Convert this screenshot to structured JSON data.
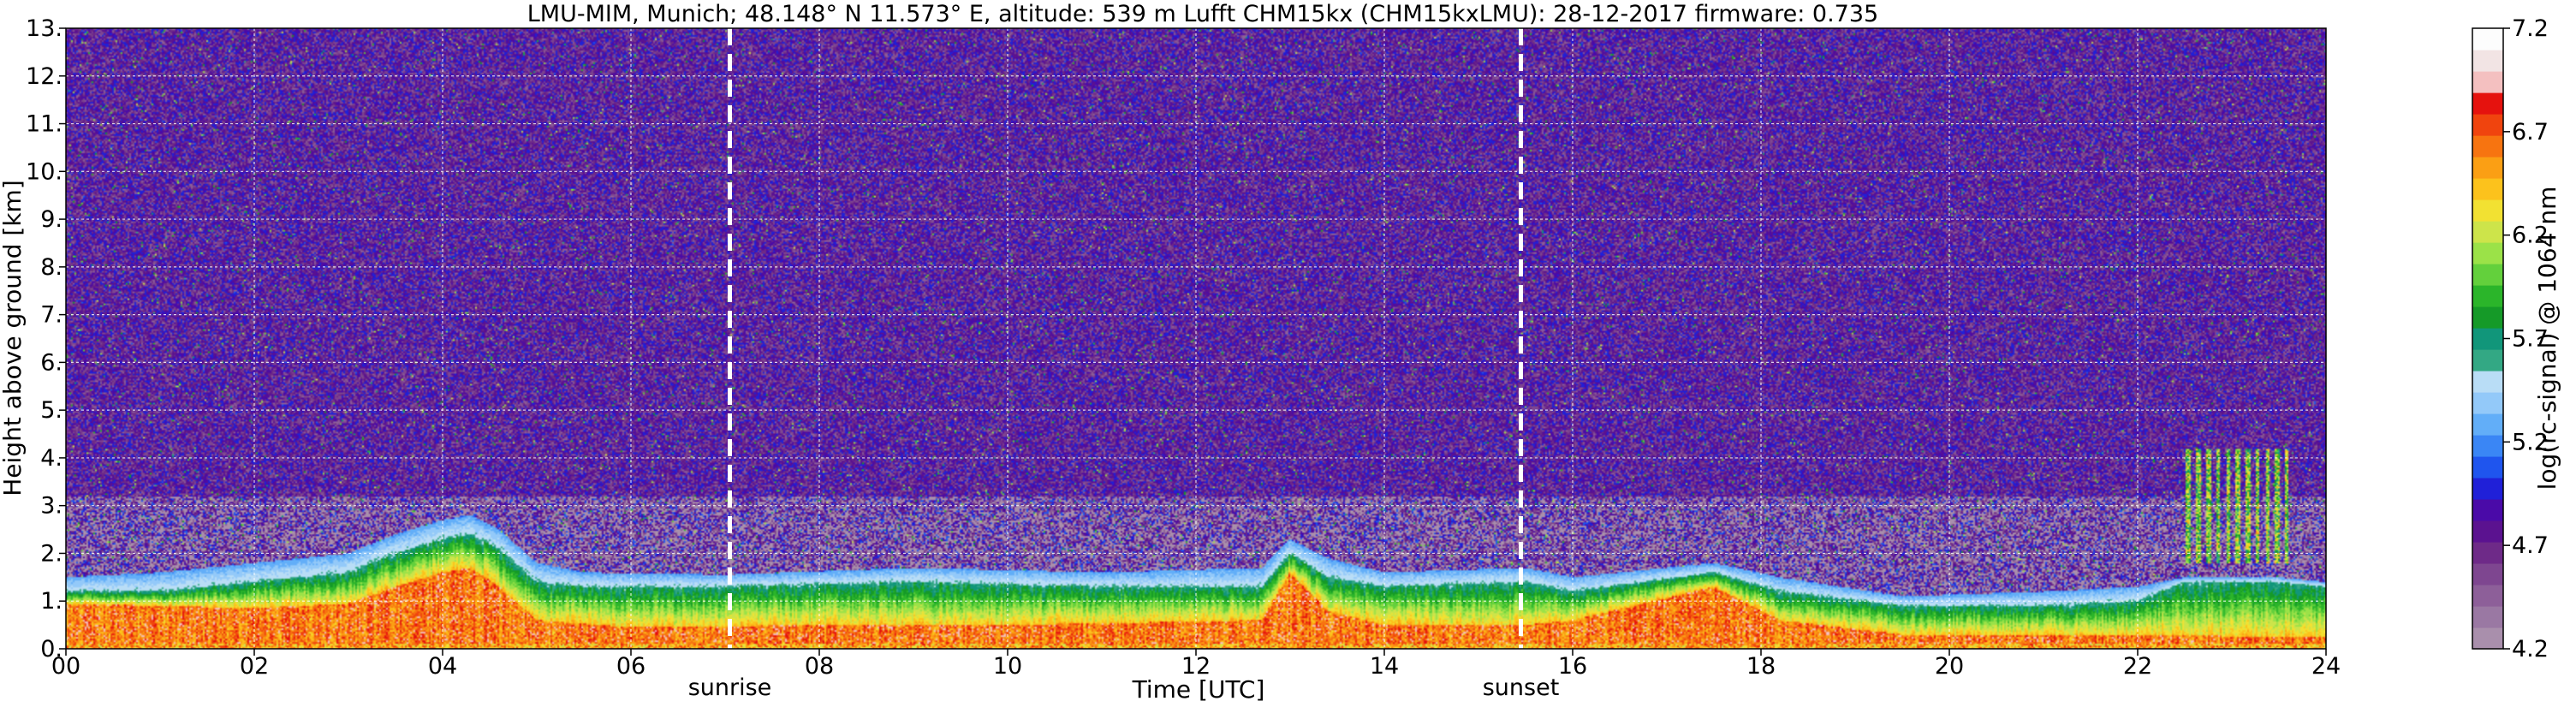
{
  "chart_data": {
    "type": "heatmap",
    "title": "LMU-MIM, Munich; 48.148° N 11.573° E, altitude: 539 m    Lufft CHM15kx (CHM15kxLMU): 28-12-2017     firmware: 0.735",
    "xlabel": "Time [UTC]",
    "ylabel": "Height above ground [km]",
    "xlim": [
      0,
      24
    ],
    "ylim": [
      0,
      13
    ],
    "x_ticks": [
      "00",
      "02",
      "04",
      "06",
      "08",
      "10",
      "12",
      "14",
      "16",
      "18",
      "20",
      "22",
      "24"
    ],
    "y_ticks": [
      "0.",
      "1.",
      "2.",
      "3.",
      "4.",
      "5.",
      "6.",
      "7.",
      "8.",
      "9.",
      "10.",
      "11.",
      "12.",
      "13."
    ],
    "grid": true,
    "colorbar": {
      "label": "log(rc-signal) @ 1064 nm",
      "range": [
        4.2,
        7.2
      ],
      "ticks": [
        "4.2",
        "4.7",
        "5.2",
        "5.7",
        "6.2",
        "6.7",
        "7.2"
      ],
      "colors": [
        "#a98fac",
        "#9a78a3",
        "#8d5f99",
        "#7e4690",
        "#6e2a88",
        "#5b1290",
        "#4a0aa8",
        "#2020d8",
        "#1f55ee",
        "#3a86f5",
        "#62aef8",
        "#93c9f9",
        "#b9ddf6",
        "#33a884",
        "#11967a",
        "#159a28",
        "#2bb52a",
        "#63d03c",
        "#9be248",
        "#cde44a",
        "#f2e132",
        "#fcc21c",
        "#fb9f14",
        "#f77410",
        "#f0440e",
        "#e5120e",
        "#f4c0c0",
        "#f2e4e4",
        "#fdfdfd"
      ]
    },
    "annotations": [
      {
        "text": "sunrise",
        "x": 7.05
      },
      {
        "text": "sunset",
        "x": 15.45
      }
    ],
    "layers": {
      "pbl_top_km": [
        [
          0,
          1.5
        ],
        [
          1,
          1.6
        ],
        [
          2,
          1.8
        ],
        [
          3,
          2.0
        ],
        [
          3.5,
          2.4
        ],
        [
          4.0,
          2.7
        ],
        [
          4.3,
          2.8
        ],
        [
          4.6,
          2.5
        ],
        [
          5.0,
          1.8
        ],
        [
          5.5,
          1.6
        ],
        [
          7,
          1.55
        ],
        [
          9,
          1.7
        ],
        [
          11,
          1.6
        ],
        [
          12.7,
          1.7
        ],
        [
          13.0,
          2.3
        ],
        [
          13.4,
          1.9
        ],
        [
          14,
          1.6
        ],
        [
          15.5,
          1.7
        ],
        [
          16,
          1.5
        ],
        [
          17.5,
          1.8
        ],
        [
          18.2,
          1.5
        ],
        [
          19.5,
          1.1
        ],
        [
          21,
          1.2
        ],
        [
          22,
          1.3
        ],
        [
          22.5,
          1.5
        ],
        [
          23.5,
          1.5
        ],
        [
          24,
          1.4
        ]
      ],
      "aerosol_top_km": [
        [
          0,
          1.2
        ],
        [
          1,
          1.2
        ],
        [
          2,
          1.4
        ],
        [
          3,
          1.6
        ],
        [
          3.5,
          2.0
        ],
        [
          4.0,
          2.3
        ],
        [
          4.3,
          2.4
        ],
        [
          4.6,
          2.1
        ],
        [
          5.0,
          1.4
        ],
        [
          5.5,
          1.3
        ],
        [
          7,
          1.3
        ],
        [
          9,
          1.4
        ],
        [
          11,
          1.3
        ],
        [
          12.7,
          1.3
        ],
        [
          13.0,
          2.0
        ],
        [
          13.4,
          1.5
        ],
        [
          14,
          1.3
        ],
        [
          15.5,
          1.4
        ],
        [
          16,
          1.2
        ],
        [
          17.5,
          1.6
        ],
        [
          18.2,
          1.2
        ],
        [
          19.5,
          0.9
        ],
        [
          21,
          0.9
        ],
        [
          22,
          1.0
        ],
        [
          22.5,
          1.4
        ],
        [
          23.5,
          1.4
        ],
        [
          24,
          1.3
        ]
      ],
      "high_signal_top_km": [
        [
          0,
          0.95
        ],
        [
          1,
          0.9
        ],
        [
          2,
          0.85
        ],
        [
          3,
          0.95
        ],
        [
          3.5,
          1.3
        ],
        [
          4.0,
          1.6
        ],
        [
          4.3,
          1.7
        ],
        [
          4.6,
          1.3
        ],
        [
          5.0,
          0.6
        ],
        [
          6,
          0.45
        ],
        [
          8,
          0.5
        ],
        [
          10,
          0.5
        ],
        [
          12.7,
          0.6
        ],
        [
          13.0,
          1.6
        ],
        [
          13.4,
          0.8
        ],
        [
          14,
          0.5
        ],
        [
          15.5,
          0.5
        ],
        [
          16,
          0.6
        ],
        [
          17.5,
          1.3
        ],
        [
          18.2,
          0.6
        ],
        [
          19.5,
          0.3
        ],
        [
          21,
          0.3
        ],
        [
          24,
          0.25
        ]
      ],
      "elevated_layer": {
        "x": [
          22.5,
          23.6
        ],
        "height_km": [
          1.8,
          4.2
        ]
      }
    }
  }
}
